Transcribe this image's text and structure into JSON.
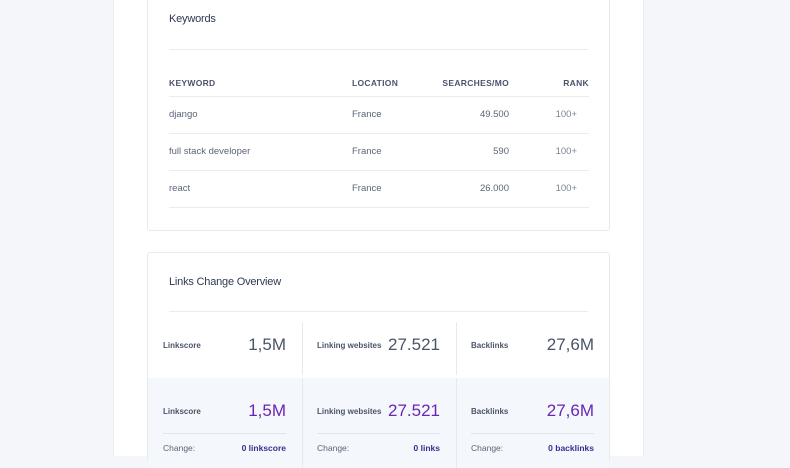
{
  "keywords": {
    "title": "Keywords",
    "headers": [
      "KEYWORD",
      "LOCATION",
      "SEARCHES/MO",
      "RANK"
    ],
    "rows": [
      {
        "keyword": "django",
        "location": "France",
        "searches": "49.500",
        "rank": "100+"
      },
      {
        "keyword": "full stack developer",
        "location": "France",
        "searches": "590",
        "rank": "100+"
      },
      {
        "keyword": "react",
        "location": "France",
        "searches": "26.000",
        "rank": "100+"
      }
    ]
  },
  "links": {
    "title": "Links Change Overview",
    "current": [
      {
        "label": "Linkscore",
        "value": "1,5M"
      },
      {
        "label": "Linking websites",
        "value": "27.521"
      },
      {
        "label": "Backlinks",
        "value": "27,6M"
      }
    ],
    "previous": [
      {
        "label": "Linkscore",
        "value": "1,5M",
        "change_label": "Change:",
        "change_num": "0",
        "change_unit": "linkscore"
      },
      {
        "label": "Linking websites",
        "value": "27.521",
        "change_label": "Change:",
        "change_num": "0",
        "change_unit": "links"
      },
      {
        "label": "Backlinks",
        "value": "27,6M",
        "change_label": "Change:",
        "change_num": "0",
        "change_unit": "backlinks"
      }
    ]
  },
  "colors": {
    "accent": "#6a25b2",
    "background": "#f5f6f9"
  }
}
